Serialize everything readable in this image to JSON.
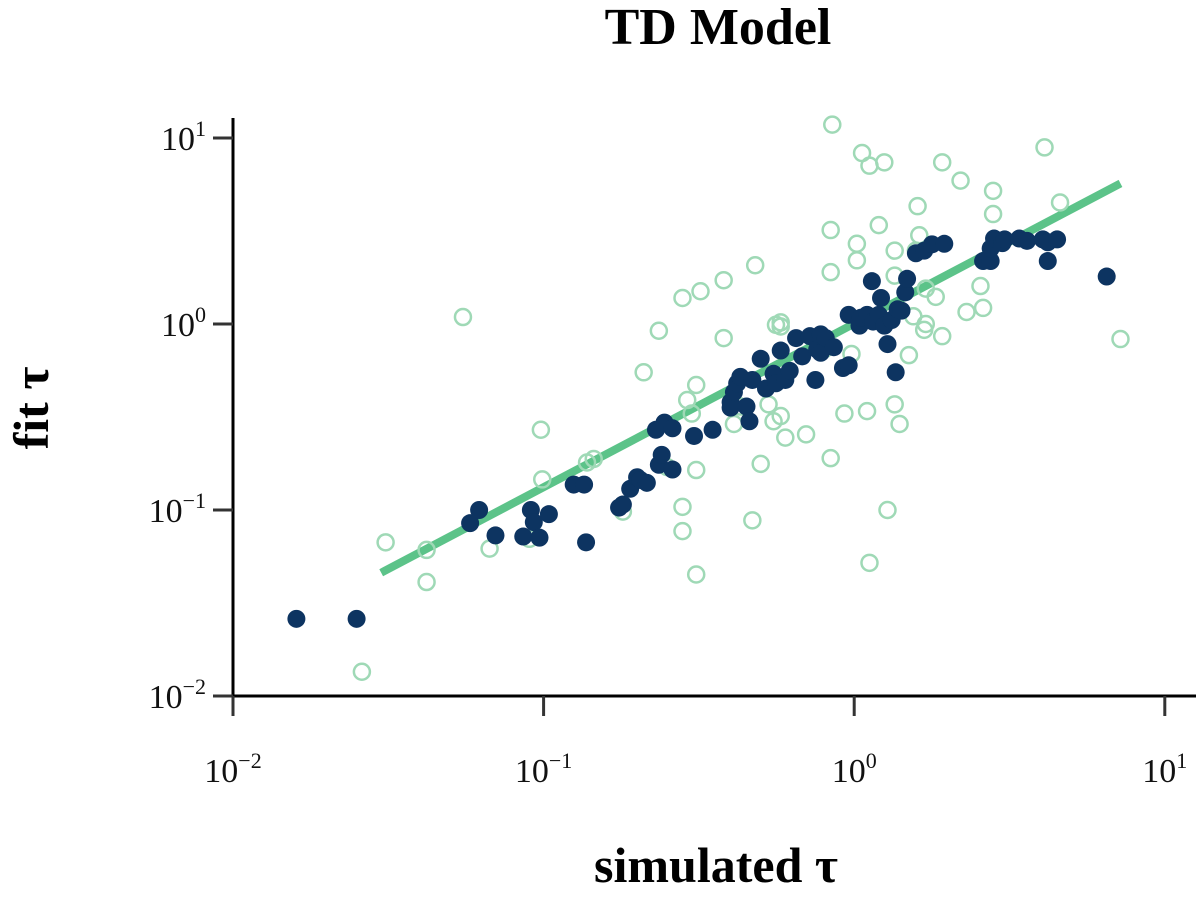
{
  "chart_data": {
    "type": "scatter",
    "title": "TD Model",
    "xlabel": "simulated τ",
    "ylabel": "fit τ",
    "xscale": "log",
    "yscale": "log",
    "xlim": [
      0.01,
      10
    ],
    "ylim": [
      0.01,
      12
    ],
    "grid": false,
    "legend": "none",
    "x_ticks": [
      {
        "base": "10",
        "exp": "−2"
      },
      {
        "base": "10",
        "exp": "−1"
      },
      {
        "base": "10",
        "exp": "0"
      },
      {
        "base": "10",
        "exp": "1"
      }
    ],
    "y_ticks": [
      {
        "base": "10",
        "exp": "−2"
      },
      {
        "base": "10",
        "exp": "−1"
      },
      {
        "base": "10",
        "exp": "0"
      },
      {
        "base": "10",
        "exp": "1"
      }
    ],
    "colors": {
      "fit_line": "#5cc389",
      "filled": "#0d3461",
      "hollow": "#9fd9b6"
    },
    "fit_line": {
      "x": [
        0.03,
        7.2
      ],
      "y": [
        0.046,
        5.7
      ]
    },
    "series": [
      {
        "style": "hollow",
        "points": [
          [
            0.026,
            0.0135
          ],
          [
            0.031,
            0.067
          ],
          [
            0.042,
            0.061
          ],
          [
            0.042,
            0.041
          ],
          [
            0.055,
            1.09
          ],
          [
            0.067,
            0.062
          ],
          [
            0.09,
            0.07
          ],
          [
            0.098,
            0.27
          ],
          [
            0.099,
            0.146
          ],
          [
            0.138,
            0.18
          ],
          [
            0.145,
            0.188
          ],
          [
            0.18,
            0.098
          ],
          [
            0.21,
            0.55
          ],
          [
            0.235,
            0.92
          ],
          [
            0.25,
            0.17
          ],
          [
            0.28,
            1.38
          ],
          [
            0.28,
            0.104
          ],
          [
            0.28,
            0.077
          ],
          [
            0.29,
            0.39
          ],
          [
            0.3,
            0.33
          ],
          [
            0.31,
            0.47
          ],
          [
            0.31,
            0.164
          ],
          [
            0.31,
            0.045
          ],
          [
            0.32,
            1.5
          ],
          [
            0.38,
            0.84
          ],
          [
            0.38,
            1.72
          ],
          [
            0.41,
            0.29
          ],
          [
            0.43,
            0.36
          ],
          [
            0.47,
            0.088
          ],
          [
            0.48,
            2.07
          ],
          [
            0.5,
            0.177
          ],
          [
            0.53,
            0.37
          ],
          [
            0.55,
            0.3
          ],
          [
            0.56,
            0.99
          ],
          [
            0.58,
            0.97
          ],
          [
            0.58,
            1.02
          ],
          [
            0.58,
            0.32
          ],
          [
            0.6,
            0.245
          ],
          [
            0.7,
            0.255
          ],
          [
            0.8,
            0.73
          ],
          [
            0.84,
            3.2
          ],
          [
            0.84,
            1.9
          ],
          [
            0.84,
            0.19
          ],
          [
            0.85,
            11.8
          ],
          [
            0.93,
            0.33
          ],
          [
            0.98,
            0.69
          ],
          [
            1.02,
            2.2
          ],
          [
            1.02,
            2.7
          ],
          [
            1.06,
            8.3
          ],
          [
            1.1,
            0.34
          ],
          [
            1.12,
            7.1
          ],
          [
            1.12,
            0.052
          ],
          [
            1.2,
            3.4
          ],
          [
            1.25,
            7.4
          ],
          [
            1.28,
            0.1
          ],
          [
            1.35,
            2.48
          ],
          [
            1.35,
            1.82
          ],
          [
            1.35,
            0.37
          ],
          [
            1.4,
            0.29
          ],
          [
            1.5,
            0.68
          ],
          [
            1.55,
            1.1
          ],
          [
            1.58,
            2.48
          ],
          [
            1.6,
            4.3
          ],
          [
            1.62,
            3.0
          ],
          [
            1.68,
            0.93
          ],
          [
            1.7,
            1.0
          ],
          [
            1.7,
            1.55
          ],
          [
            1.83,
            1.4
          ],
          [
            1.92,
            7.4
          ],
          [
            1.92,
            0.86
          ],
          [
            2.2,
            5.9
          ],
          [
            2.3,
            1.16
          ],
          [
            2.55,
            1.6
          ],
          [
            2.6,
            1.22
          ],
          [
            2.8,
            5.2
          ],
          [
            2.8,
            3.9
          ],
          [
            4.1,
            8.9
          ],
          [
            4.6,
            4.5
          ],
          [
            7.2,
            0.83
          ]
        ]
      },
      {
        "style": "filled",
        "points": [
          [
            0.016,
            0.026
          ],
          [
            0.025,
            0.026
          ],
          [
            0.058,
            0.085
          ],
          [
            0.062,
            0.1
          ],
          [
            0.07,
            0.073
          ],
          [
            0.086,
            0.072
          ],
          [
            0.091,
            0.1
          ],
          [
            0.093,
            0.086
          ],
          [
            0.097,
            0.071
          ],
          [
            0.104,
            0.095
          ],
          [
            0.125,
            0.137
          ],
          [
            0.135,
            0.137
          ],
          [
            0.137,
            0.067
          ],
          [
            0.175,
            0.103
          ],
          [
            0.18,
            0.107
          ],
          [
            0.19,
            0.13
          ],
          [
            0.2,
            0.15
          ],
          [
            0.205,
            0.145
          ],
          [
            0.215,
            0.14
          ],
          [
            0.23,
            0.27
          ],
          [
            0.235,
            0.175
          ],
          [
            0.24,
            0.198
          ],
          [
            0.245,
            0.295
          ],
          [
            0.26,
            0.275
          ],
          [
            0.26,
            0.165
          ],
          [
            0.305,
            0.25
          ],
          [
            0.35,
            0.27
          ],
          [
            0.4,
            0.38
          ],
          [
            0.4,
            0.355
          ],
          [
            0.41,
            0.43
          ],
          [
            0.42,
            0.48
          ],
          [
            0.43,
            0.52
          ],
          [
            0.45,
            0.36
          ],
          [
            0.46,
            0.3
          ],
          [
            0.47,
            0.5
          ],
          [
            0.5,
            0.65
          ],
          [
            0.52,
            0.45
          ],
          [
            0.55,
            0.54
          ],
          [
            0.56,
            0.48
          ],
          [
            0.58,
            0.72
          ],
          [
            0.6,
            0.5
          ],
          [
            0.62,
            0.56
          ],
          [
            0.65,
            0.84
          ],
          [
            0.68,
            0.67
          ],
          [
            0.72,
            0.86
          ],
          [
            0.75,
            0.5
          ],
          [
            0.76,
            0.73
          ],
          [
            0.78,
            0.7
          ],
          [
            0.78,
            0.88
          ],
          [
            0.81,
            0.84
          ],
          [
            0.86,
            0.75
          ],
          [
            0.92,
            0.58
          ],
          [
            0.96,
            0.6
          ],
          [
            0.96,
            1.12
          ],
          [
            1.04,
            0.98
          ],
          [
            1.05,
            1.08
          ],
          [
            1.1,
            1.12
          ],
          [
            1.14,
            1.7
          ],
          [
            1.15,
            1.03
          ],
          [
            1.2,
            1.12
          ],
          [
            1.22,
            1.38
          ],
          [
            1.25,
            0.98
          ],
          [
            1.28,
            0.78
          ],
          [
            1.32,
            1.05
          ],
          [
            1.36,
            0.55
          ],
          [
            1.38,
            1.2
          ],
          [
            1.42,
            1.18
          ],
          [
            1.46,
            1.48
          ],
          [
            1.48,
            1.75
          ],
          [
            1.58,
            2.4
          ],
          [
            1.68,
            2.48
          ],
          [
            1.78,
            2.68
          ],
          [
            1.95,
            2.7
          ],
          [
            2.6,
            2.18
          ],
          [
            2.75,
            2.18
          ],
          [
            2.75,
            2.55
          ],
          [
            2.82,
            2.88
          ],
          [
            3.0,
            2.72
          ],
          [
            3.05,
            2.85
          ],
          [
            3.4,
            2.88
          ],
          [
            3.6,
            2.8
          ],
          [
            4.05,
            2.85
          ],
          [
            4.2,
            2.18
          ],
          [
            4.2,
            2.75
          ],
          [
            4.5,
            2.85
          ],
          [
            6.5,
            1.8
          ]
        ]
      }
    ]
  }
}
